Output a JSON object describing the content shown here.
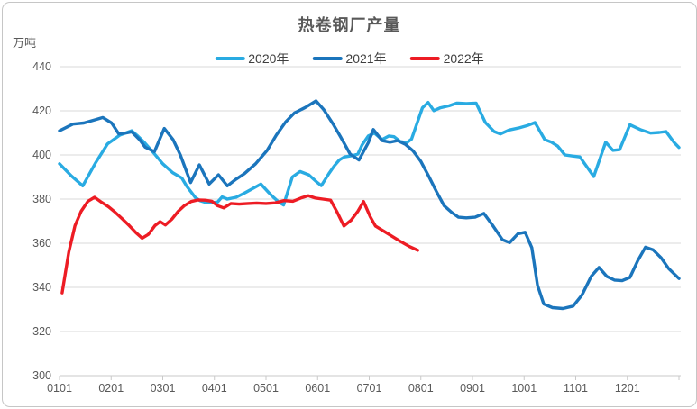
{
  "window": {
    "background": "#FFFFFF",
    "border_color": "#C6C6C6"
  },
  "chart_data": {
    "type": "line",
    "title": "热卷钢厂产量",
    "y_unit_label": "万吨",
    "ylim": [
      300,
      440
    ],
    "y_tick_step": 20,
    "y_tick_labels": [
      "300",
      "320",
      "340",
      "360",
      "380",
      "400",
      "420",
      "440"
    ],
    "x_tick_labels": [
      "0101",
      "0201",
      "0301",
      "0401",
      "0501",
      "0601",
      "0701",
      "0801",
      "0901",
      "1001",
      "1101",
      "1201"
    ],
    "x_domain_months": [
      1,
      13
    ],
    "grid": "horizontal-only",
    "legend_position": "top-center",
    "colors": {
      "grid": "#D9D9D9",
      "axis": "#C9C9C9",
      "tick_text": "#595959",
      "legend_text": "#3F3F3F",
      "title_text": "#595959"
    },
    "series": [
      {
        "name": "2020年",
        "color": "#29ABE2",
        "points": [
          [
            1.0,
            396
          ],
          [
            1.23,
            390.5
          ],
          [
            1.45,
            386
          ],
          [
            1.7,
            396.5
          ],
          [
            1.93,
            405
          ],
          [
            2.17,
            409
          ],
          [
            2.4,
            411
          ],
          [
            2.52,
            408.5
          ],
          [
            2.63,
            406
          ],
          [
            2.84,
            400.5
          ],
          [
            3.0,
            396
          ],
          [
            3.19,
            392
          ],
          [
            3.37,
            389.5
          ],
          [
            3.46,
            386
          ],
          [
            3.54,
            383.5
          ],
          [
            3.63,
            380.7
          ],
          [
            3.72,
            379.3
          ],
          [
            3.81,
            378.6
          ],
          [
            3.92,
            378.4
          ],
          [
            4.06,
            378.6
          ],
          [
            4.15,
            381
          ],
          [
            4.25,
            380
          ],
          [
            4.42,
            380.8
          ],
          [
            4.58,
            382.7
          ],
          [
            4.76,
            385
          ],
          [
            4.9,
            386.8
          ],
          [
            5.05,
            383
          ],
          [
            5.15,
            380.7
          ],
          [
            5.25,
            378.6
          ],
          [
            5.34,
            377.3
          ],
          [
            5.51,
            390
          ],
          [
            5.66,
            392.5
          ],
          [
            5.83,
            391
          ],
          [
            5.98,
            387.8
          ],
          [
            6.07,
            386.1
          ],
          [
            6.22,
            391.6
          ],
          [
            6.32,
            395
          ],
          [
            6.42,
            397.7
          ],
          [
            6.52,
            399.1
          ],
          [
            6.68,
            399.7
          ],
          [
            6.78,
            400.4
          ],
          [
            6.86,
            404.5
          ],
          [
            6.98,
            408.6
          ],
          [
            7.1,
            409.9
          ],
          [
            7.25,
            407
          ],
          [
            7.38,
            408.6
          ],
          [
            7.48,
            408.3
          ],
          [
            7.6,
            406.1
          ],
          [
            7.73,
            405.6
          ],
          [
            7.82,
            407.2
          ],
          [
            8.03,
            421.4
          ],
          [
            8.14,
            423.8
          ],
          [
            8.25,
            420.1
          ],
          [
            8.38,
            421.4
          ],
          [
            8.55,
            422.3
          ],
          [
            8.7,
            423.5
          ],
          [
            8.88,
            423.3
          ],
          [
            9.07,
            423.5
          ],
          [
            9.25,
            414.7
          ],
          [
            9.42,
            410.6
          ],
          [
            9.54,
            409.5
          ],
          [
            9.71,
            411.3
          ],
          [
            9.89,
            412.2
          ],
          [
            10.06,
            413.3
          ],
          [
            10.21,
            414.7
          ],
          [
            10.4,
            407
          ],
          [
            10.53,
            405.8
          ],
          [
            10.65,
            404
          ],
          [
            10.79,
            400
          ],
          [
            10.94,
            399.5
          ],
          [
            11.08,
            399.1
          ],
          [
            11.35,
            390.2
          ],
          [
            11.58,
            405.8
          ],
          [
            11.72,
            402.1
          ],
          [
            11.85,
            402.4
          ],
          [
            12.05,
            413.7
          ],
          [
            12.25,
            411.5
          ],
          [
            12.45,
            409.9
          ],
          [
            12.62,
            410.2
          ],
          [
            12.75,
            410.6
          ],
          [
            12.9,
            405.8
          ],
          [
            13.0,
            403.4
          ]
        ]
      },
      {
        "name": "2021年",
        "color": "#1B75BC",
        "points": [
          [
            1.0,
            411
          ],
          [
            1.26,
            414
          ],
          [
            1.47,
            414.5
          ],
          [
            1.7,
            416
          ],
          [
            1.84,
            417
          ],
          [
            2.01,
            414.5
          ],
          [
            2.15,
            409.5
          ],
          [
            2.3,
            410
          ],
          [
            2.4,
            410.5
          ],
          [
            2.55,
            407
          ],
          [
            2.66,
            403.5
          ],
          [
            2.84,
            401.5
          ],
          [
            3.03,
            412
          ],
          [
            3.2,
            407
          ],
          [
            3.34,
            400
          ],
          [
            3.54,
            387.5
          ],
          [
            3.71,
            395.5
          ],
          [
            3.9,
            386.8
          ],
          [
            4.08,
            391
          ],
          [
            4.25,
            386
          ],
          [
            4.42,
            389
          ],
          [
            4.58,
            391.5
          ],
          [
            4.8,
            396
          ],
          [
            5.02,
            402
          ],
          [
            5.2,
            409
          ],
          [
            5.38,
            415
          ],
          [
            5.55,
            419
          ],
          [
            5.76,
            421.5
          ],
          [
            5.97,
            424.5
          ],
          [
            6.12,
            420.5
          ],
          [
            6.3,
            414
          ],
          [
            6.45,
            408
          ],
          [
            6.63,
            400.4
          ],
          [
            6.8,
            397.7
          ],
          [
            6.98,
            405.5
          ],
          [
            7.08,
            411.5
          ],
          [
            7.25,
            406.5
          ],
          [
            7.4,
            405.8
          ],
          [
            7.55,
            406.5
          ],
          [
            7.7,
            404.8
          ],
          [
            7.85,
            401.8
          ],
          [
            8.0,
            397
          ],
          [
            8.15,
            390.5
          ],
          [
            8.3,
            383.5
          ],
          [
            8.45,
            377
          ],
          [
            8.6,
            373.9
          ],
          [
            8.73,
            371.8
          ],
          [
            8.88,
            371.5
          ],
          [
            9.05,
            371.8
          ],
          [
            9.22,
            373.5
          ],
          [
            9.4,
            367.8
          ],
          [
            9.58,
            361.6
          ],
          [
            9.72,
            360.3
          ],
          [
            9.88,
            364.3
          ],
          [
            10.02,
            365
          ],
          [
            10.15,
            358
          ],
          [
            10.26,
            341
          ],
          [
            10.38,
            332.5
          ],
          [
            10.55,
            330.8
          ],
          [
            10.75,
            330.4
          ],
          [
            10.95,
            331.5
          ],
          [
            11.12,
            336.5
          ],
          [
            11.3,
            345
          ],
          [
            11.45,
            349
          ],
          [
            11.6,
            345
          ],
          [
            11.75,
            343.3
          ],
          [
            11.9,
            343
          ],
          [
            12.05,
            344.5
          ],
          [
            12.2,
            352
          ],
          [
            12.35,
            358.2
          ],
          [
            12.5,
            357
          ],
          [
            12.65,
            353.5
          ],
          [
            12.8,
            348.5
          ],
          [
            13.0,
            344
          ]
        ]
      },
      {
        "name": "2022年",
        "color": "#ED1C24",
        "points": [
          [
            1.05,
            337.5
          ],
          [
            1.18,
            356
          ],
          [
            1.3,
            368
          ],
          [
            1.42,
            374.5
          ],
          [
            1.55,
            379
          ],
          [
            1.68,
            380.8
          ],
          [
            1.82,
            378.5
          ],
          [
            1.95,
            376.5
          ],
          [
            2.08,
            374
          ],
          [
            2.22,
            371
          ],
          [
            2.35,
            368
          ],
          [
            2.48,
            364.8
          ],
          [
            2.6,
            362.3
          ],
          [
            2.72,
            364
          ],
          [
            2.85,
            368
          ],
          [
            2.95,
            369.8
          ],
          [
            3.05,
            368.3
          ],
          [
            3.18,
            371
          ],
          [
            3.3,
            374.5
          ],
          [
            3.42,
            377
          ],
          [
            3.55,
            378.9
          ],
          [
            3.68,
            379.6
          ],
          [
            3.82,
            379.5
          ],
          [
            3.95,
            379
          ],
          [
            4.06,
            377
          ],
          [
            4.18,
            376
          ],
          [
            4.32,
            378
          ],
          [
            4.48,
            377.7
          ],
          [
            4.65,
            378
          ],
          [
            4.82,
            378.2
          ],
          [
            5.0,
            378
          ],
          [
            5.18,
            378.3
          ],
          [
            5.35,
            379.3
          ],
          [
            5.52,
            379
          ],
          [
            5.68,
            380.5
          ],
          [
            5.82,
            381.5
          ],
          [
            5.95,
            380.5
          ],
          [
            6.1,
            380
          ],
          [
            6.25,
            379.5
          ],
          [
            6.38,
            374
          ],
          [
            6.51,
            367.8
          ],
          [
            6.65,
            370.5
          ],
          [
            6.78,
            374.5
          ],
          [
            6.89,
            378.9
          ],
          [
            7.02,
            372
          ],
          [
            7.12,
            367.8
          ],
          [
            7.28,
            365.5
          ],
          [
            7.45,
            363
          ],
          [
            7.6,
            360.9
          ],
          [
            7.78,
            358.5
          ],
          [
            7.94,
            356.8
          ]
        ]
      }
    ]
  }
}
